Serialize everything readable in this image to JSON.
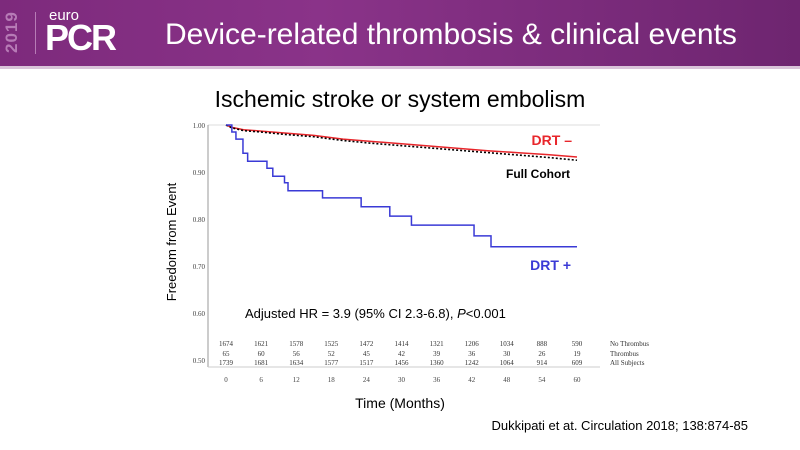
{
  "header": {
    "logo_year": "2019",
    "logo_top": "euro",
    "logo_main": "PCR",
    "title": "Device-related thrombosis & clinical events",
    "bg": "#82307f"
  },
  "chart_data": {
    "type": "line",
    "title": "Ischemic stroke or system embolism",
    "xlabel": "Time (Months)",
    "ylabel": "Freedom from Event",
    "xlim": [
      0,
      60
    ],
    "ylim": [
      0.5,
      1.0
    ],
    "xticks": [
      0,
      6,
      12,
      18,
      24,
      30,
      36,
      42,
      48,
      54,
      60
    ],
    "yticks": [
      "0.50",
      "0.60",
      "0.70",
      "0.80",
      "0.90",
      "1.00"
    ],
    "series": [
      {
        "name": "DRT –",
        "color": "#e8262b",
        "style": "solid",
        "x": [
          0,
          1,
          3,
          6,
          10,
          15,
          20,
          25,
          30,
          35,
          40,
          45,
          50,
          55,
          60
        ],
        "y": [
          1.0,
          0.995,
          0.99,
          0.987,
          0.983,
          0.978,
          0.97,
          0.965,
          0.96,
          0.955,
          0.95,
          0.945,
          0.941,
          0.937,
          0.932
        ]
      },
      {
        "name": "Full Cohort",
        "color": "#000000",
        "style": "dashed",
        "x": [
          0,
          1,
          3,
          6,
          10,
          15,
          20,
          25,
          30,
          35,
          40,
          45,
          50,
          55,
          60
        ],
        "y": [
          1.0,
          0.994,
          0.988,
          0.985,
          0.98,
          0.975,
          0.967,
          0.961,
          0.956,
          0.951,
          0.946,
          0.941,
          0.936,
          0.931,
          0.925
        ]
      },
      {
        "name": "DRT +",
        "color": "#3a3ad6",
        "style": "step",
        "x": [
          0,
          1.0,
          1.7,
          2.9,
          3.7,
          7.0,
          8.0,
          10.0,
          10.6,
          16.5,
          23.1,
          28.0,
          31.7,
          42.4,
          45.3,
          60
        ],
        "y": [
          1.0,
          0.985,
          0.97,
          0.94,
          0.923,
          0.908,
          0.891,
          0.877,
          0.86,
          0.845,
          0.826,
          0.806,
          0.787,
          0.764,
          0.741,
          0.741
        ]
      }
    ],
    "annotation": "Adjusted HR = 3.9 (95% CI 2.3-6.8), P<0.001",
    "annotation_parts": [
      "Adjusted HR = 3.9 (95% CI 2.3-6.8), ",
      "P",
      "<0.001"
    ],
    "at_risk": [
      {
        "label": "No Thrombus",
        "values": [
          1674,
          1621,
          1578,
          1525,
          1472,
          1414,
          1321,
          1206,
          1034,
          888,
          590
        ]
      },
      {
        "label": "Thrombus",
        "values": [
          65,
          60,
          56,
          52,
          45,
          42,
          39,
          36,
          30,
          26,
          19
        ]
      },
      {
        "label": "All Subjects",
        "values": [
          1739,
          1681,
          1634,
          1577,
          1517,
          1456,
          1360,
          1242,
          1064,
          914,
          609
        ]
      }
    ]
  },
  "citation": "Dukkipati et at. Circulation 2018; 138:874-85"
}
